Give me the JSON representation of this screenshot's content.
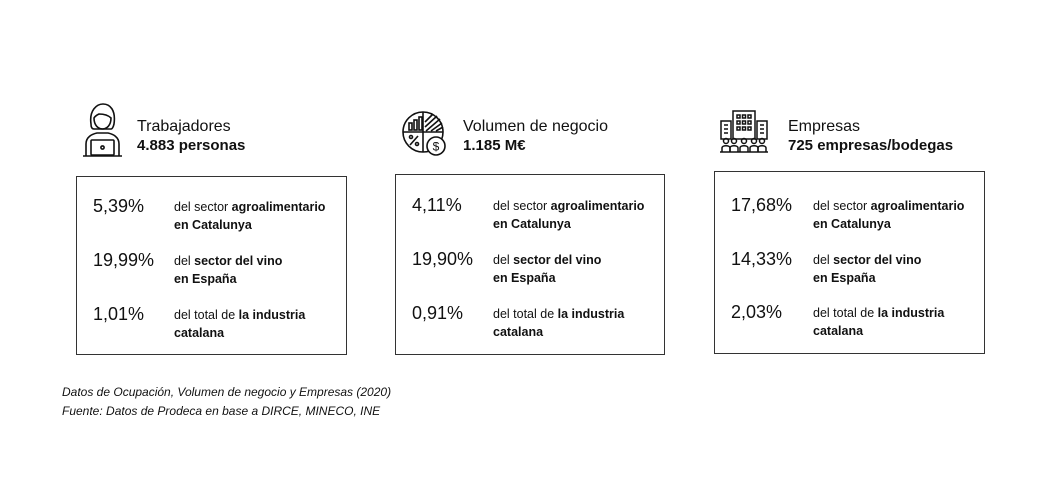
{
  "cards": [
    {
      "icon": "worker-laptop-icon",
      "title": "Trabajadores",
      "value": "4.883 personas",
      "stats": [
        {
          "pct": "5,39%",
          "pre": "del sector ",
          "bold": "agroalimentario",
          "post": "",
          "line2": "en Catalunya"
        },
        {
          "pct": "19,99%",
          "pre": "del ",
          "bold": "sector del vino",
          "post": "",
          "line2": "en España"
        },
        {
          "pct": "1,01%",
          "pre": "del total de ",
          "bold": "la industria",
          "post": "",
          "line2": "catalana"
        }
      ]
    },
    {
      "icon": "business-chart-icon",
      "title": "Volumen de negocio",
      "value": "1.185 M€",
      "stats": [
        {
          "pct": "4,11%",
          "pre": "del sector ",
          "bold": "agroalimentario",
          "post": "",
          "line2": "en Catalunya"
        },
        {
          "pct": "19,90%",
          "pre": "del ",
          "bold": "sector del vino",
          "post": "",
          "line2": "en España"
        },
        {
          "pct": "0,91%",
          "pre": "del total de ",
          "bold": "la industria",
          "post": "",
          "line2": "catalana"
        }
      ]
    },
    {
      "icon": "company-building-icon",
      "title": "Empresas",
      "value": "725 empresas/bodegas",
      "stats": [
        {
          "pct": "17,68%",
          "pre": "del sector ",
          "bold": "agroalimentario",
          "post": "",
          "line2": "en Catalunya"
        },
        {
          "pct": "14,33%",
          "pre": "del ",
          "bold": "sector del vino",
          "post": "",
          "line2": "en España"
        },
        {
          "pct": "2,03%",
          "pre": "del total de ",
          "bold": "la industria",
          "post": "",
          "line2": "catalana"
        }
      ]
    }
  ],
  "footer": {
    "line1": "Datos de Ocupación, Volumen de negocio y Empresas (2020)",
    "line2": "Fuente: Datos de Prodeca en base a DIRCE, MINECO, INE"
  }
}
